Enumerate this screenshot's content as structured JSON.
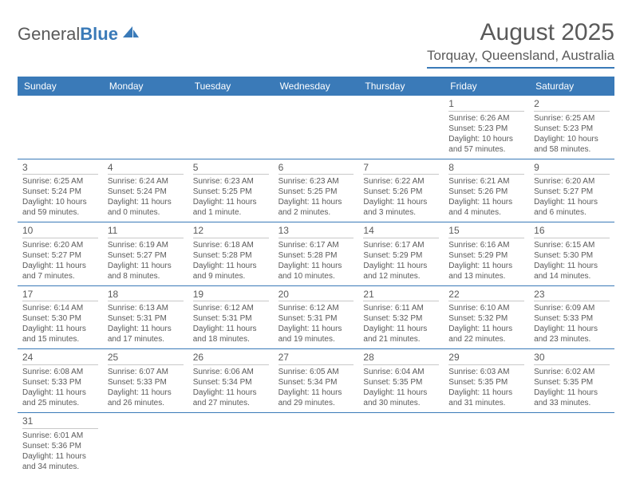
{
  "logo": {
    "text1": "General",
    "text2": "Blue"
  },
  "title": "August 2025",
  "location": "Torquay, Queensland, Australia",
  "colors": {
    "accent": "#3a7ab8",
    "text": "#5a5a5a",
    "rule": "#c8c8c8",
    "bg": "#ffffff"
  },
  "day_names": [
    "Sunday",
    "Monday",
    "Tuesday",
    "Wednesday",
    "Thursday",
    "Friday",
    "Saturday"
  ],
  "weeks": [
    [
      null,
      null,
      null,
      null,
      null,
      {
        "n": "1",
        "sr": "Sunrise: 6:26 AM",
        "ss": "Sunset: 5:23 PM",
        "dl": "Daylight: 10 hours and 57 minutes."
      },
      {
        "n": "2",
        "sr": "Sunrise: 6:25 AM",
        "ss": "Sunset: 5:23 PM",
        "dl": "Daylight: 10 hours and 58 minutes."
      }
    ],
    [
      {
        "n": "3",
        "sr": "Sunrise: 6:25 AM",
        "ss": "Sunset: 5:24 PM",
        "dl": "Daylight: 10 hours and 59 minutes."
      },
      {
        "n": "4",
        "sr": "Sunrise: 6:24 AM",
        "ss": "Sunset: 5:24 PM",
        "dl": "Daylight: 11 hours and 0 minutes."
      },
      {
        "n": "5",
        "sr": "Sunrise: 6:23 AM",
        "ss": "Sunset: 5:25 PM",
        "dl": "Daylight: 11 hours and 1 minute."
      },
      {
        "n": "6",
        "sr": "Sunrise: 6:23 AM",
        "ss": "Sunset: 5:25 PM",
        "dl": "Daylight: 11 hours and 2 minutes."
      },
      {
        "n": "7",
        "sr": "Sunrise: 6:22 AM",
        "ss": "Sunset: 5:26 PM",
        "dl": "Daylight: 11 hours and 3 minutes."
      },
      {
        "n": "8",
        "sr": "Sunrise: 6:21 AM",
        "ss": "Sunset: 5:26 PM",
        "dl": "Daylight: 11 hours and 4 minutes."
      },
      {
        "n": "9",
        "sr": "Sunrise: 6:20 AM",
        "ss": "Sunset: 5:27 PM",
        "dl": "Daylight: 11 hours and 6 minutes."
      }
    ],
    [
      {
        "n": "10",
        "sr": "Sunrise: 6:20 AM",
        "ss": "Sunset: 5:27 PM",
        "dl": "Daylight: 11 hours and 7 minutes."
      },
      {
        "n": "11",
        "sr": "Sunrise: 6:19 AM",
        "ss": "Sunset: 5:27 PM",
        "dl": "Daylight: 11 hours and 8 minutes."
      },
      {
        "n": "12",
        "sr": "Sunrise: 6:18 AM",
        "ss": "Sunset: 5:28 PM",
        "dl": "Daylight: 11 hours and 9 minutes."
      },
      {
        "n": "13",
        "sr": "Sunrise: 6:17 AM",
        "ss": "Sunset: 5:28 PM",
        "dl": "Daylight: 11 hours and 10 minutes."
      },
      {
        "n": "14",
        "sr": "Sunrise: 6:17 AM",
        "ss": "Sunset: 5:29 PM",
        "dl": "Daylight: 11 hours and 12 minutes."
      },
      {
        "n": "15",
        "sr": "Sunrise: 6:16 AM",
        "ss": "Sunset: 5:29 PM",
        "dl": "Daylight: 11 hours and 13 minutes."
      },
      {
        "n": "16",
        "sr": "Sunrise: 6:15 AM",
        "ss": "Sunset: 5:30 PM",
        "dl": "Daylight: 11 hours and 14 minutes."
      }
    ],
    [
      {
        "n": "17",
        "sr": "Sunrise: 6:14 AM",
        "ss": "Sunset: 5:30 PM",
        "dl": "Daylight: 11 hours and 15 minutes."
      },
      {
        "n": "18",
        "sr": "Sunrise: 6:13 AM",
        "ss": "Sunset: 5:31 PM",
        "dl": "Daylight: 11 hours and 17 minutes."
      },
      {
        "n": "19",
        "sr": "Sunrise: 6:12 AM",
        "ss": "Sunset: 5:31 PM",
        "dl": "Daylight: 11 hours and 18 minutes."
      },
      {
        "n": "20",
        "sr": "Sunrise: 6:12 AM",
        "ss": "Sunset: 5:31 PM",
        "dl": "Daylight: 11 hours and 19 minutes."
      },
      {
        "n": "21",
        "sr": "Sunrise: 6:11 AM",
        "ss": "Sunset: 5:32 PM",
        "dl": "Daylight: 11 hours and 21 minutes."
      },
      {
        "n": "22",
        "sr": "Sunrise: 6:10 AM",
        "ss": "Sunset: 5:32 PM",
        "dl": "Daylight: 11 hours and 22 minutes."
      },
      {
        "n": "23",
        "sr": "Sunrise: 6:09 AM",
        "ss": "Sunset: 5:33 PM",
        "dl": "Daylight: 11 hours and 23 minutes."
      }
    ],
    [
      {
        "n": "24",
        "sr": "Sunrise: 6:08 AM",
        "ss": "Sunset: 5:33 PM",
        "dl": "Daylight: 11 hours and 25 minutes."
      },
      {
        "n": "25",
        "sr": "Sunrise: 6:07 AM",
        "ss": "Sunset: 5:33 PM",
        "dl": "Daylight: 11 hours and 26 minutes."
      },
      {
        "n": "26",
        "sr": "Sunrise: 6:06 AM",
        "ss": "Sunset: 5:34 PM",
        "dl": "Daylight: 11 hours and 27 minutes."
      },
      {
        "n": "27",
        "sr": "Sunrise: 6:05 AM",
        "ss": "Sunset: 5:34 PM",
        "dl": "Daylight: 11 hours and 29 minutes."
      },
      {
        "n": "28",
        "sr": "Sunrise: 6:04 AM",
        "ss": "Sunset: 5:35 PM",
        "dl": "Daylight: 11 hours and 30 minutes."
      },
      {
        "n": "29",
        "sr": "Sunrise: 6:03 AM",
        "ss": "Sunset: 5:35 PM",
        "dl": "Daylight: 11 hours and 31 minutes."
      },
      {
        "n": "30",
        "sr": "Sunrise: 6:02 AM",
        "ss": "Sunset: 5:35 PM",
        "dl": "Daylight: 11 hours and 33 minutes."
      }
    ],
    [
      {
        "n": "31",
        "sr": "Sunrise: 6:01 AM",
        "ss": "Sunset: 5:36 PM",
        "dl": "Daylight: 11 hours and 34 minutes."
      },
      null,
      null,
      null,
      null,
      null,
      null
    ]
  ]
}
